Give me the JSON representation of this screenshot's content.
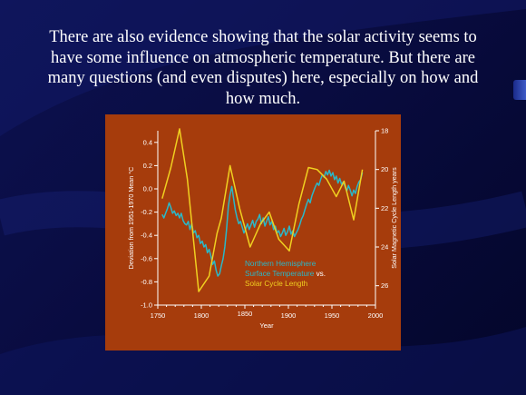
{
  "slide": {
    "caption": "There are also evidence showing that the solar activity seems to have some influence on atmospheric temperature. But there are many questions (and even disputes) here, especially on how and how much."
  },
  "colors": {
    "background": "#08104a",
    "panel": "#a63c0c",
    "temperature_line": "#2ab8c8",
    "solar_line": "#f0d020",
    "axis": "#ffffff"
  },
  "chart_data": {
    "type": "line",
    "xlabel": "Year",
    "ylabel_left": "Deviation from 1951-1970 Mean °C",
    "ylabel_right": "Solar Magnetic Cycle Length years",
    "xlim": [
      1750,
      2000
    ],
    "ylim_left": [
      -1.0,
      0.5
    ],
    "ylim_right": [
      27.0,
      18.0
    ],
    "right_axis_inverted": true,
    "x_ticks": [
      "1750",
      "1800",
      "1850",
      "1900",
      "1950",
      "2000"
    ],
    "y_ticks_left": [
      "0.4",
      "0.2",
      "0.0",
      "-0.2",
      "-0.4",
      "-0.6",
      "-0.8",
      "-1.0"
    ],
    "y_ticks_right": [
      "18",
      "20",
      "22",
      "24",
      "26"
    ],
    "legend_lines": [
      {
        "text": "Northern Hemisphere",
        "color": "#2ab8c8"
      },
      {
        "text": "Surface Temperature",
        "color": "#2ab8c8",
        "suffix": " vs.",
        "suffix_color": "#ffffff"
      },
      {
        "text": "Solar Cycle Length",
        "color": "#f0d020"
      }
    ],
    "legend_position": "lower-center",
    "series": [
      {
        "name": "Northern Hemisphere Surface Temperature",
        "color": "#2ab8c8",
        "axis": "left",
        "x": [
          1755,
          1757,
          1759,
          1761,
          1763,
          1765,
          1767,
          1769,
          1771,
          1773,
          1775,
          1777,
          1779,
          1781,
          1783,
          1785,
          1787,
          1789,
          1791,
          1793,
          1795,
          1797,
          1799,
          1801,
          1803,
          1805,
          1807,
          1809,
          1811,
          1813,
          1815,
          1817,
          1819,
          1821,
          1823,
          1825,
          1827,
          1829,
          1831,
          1833,
          1835,
          1837,
          1839,
          1841,
          1843,
          1845,
          1847,
          1849,
          1851,
          1853,
          1855,
          1857,
          1859,
          1861,
          1863,
          1865,
          1867,
          1869,
          1871,
          1873,
          1875,
          1877,
          1879,
          1881,
          1883,
          1885,
          1887,
          1889,
          1891,
          1893,
          1895,
          1897,
          1899,
          1901,
          1903,
          1905,
          1907,
          1909,
          1911,
          1913,
          1915,
          1917,
          1919,
          1921,
          1923,
          1925,
          1927,
          1929,
          1931,
          1933,
          1935,
          1937,
          1939,
          1941,
          1943,
          1945,
          1947,
          1949,
          1951,
          1953,
          1955,
          1957,
          1959,
          1961,
          1963,
          1965,
          1967,
          1969,
          1971,
          1973,
          1975,
          1977,
          1979,
          1981,
          1983,
          1985
        ],
        "y": [
          -0.22,
          -0.25,
          -0.21,
          -0.17,
          -0.12,
          -0.16,
          -0.21,
          -0.19,
          -0.23,
          -0.21,
          -0.25,
          -0.21,
          -0.27,
          -0.3,
          -0.31,
          -0.28,
          -0.35,
          -0.3,
          -0.38,
          -0.36,
          -0.42,
          -0.4,
          -0.47,
          -0.45,
          -0.5,
          -0.48,
          -0.55,
          -0.52,
          -0.58,
          -0.65,
          -0.62,
          -0.7,
          -0.75,
          -0.73,
          -0.66,
          -0.6,
          -0.5,
          -0.35,
          -0.15,
          -0.05,
          0.02,
          -0.08,
          -0.18,
          -0.25,
          -0.3,
          -0.28,
          -0.33,
          -0.38,
          -0.34,
          -0.3,
          -0.35,
          -0.31,
          -0.27,
          -0.33,
          -0.28,
          -0.26,
          -0.22,
          -0.3,
          -0.25,
          -0.32,
          -0.28,
          -0.24,
          -0.31,
          -0.28,
          -0.35,
          -0.32,
          -0.38,
          -0.36,
          -0.41,
          -0.38,
          -0.34,
          -0.4,
          -0.37,
          -0.32,
          -0.39,
          -0.36,
          -0.41,
          -0.38,
          -0.35,
          -0.31,
          -0.26,
          -0.23,
          -0.18,
          -0.13,
          -0.09,
          -0.12,
          -0.06,
          -0.02,
          0.02,
          0.05,
          0.03,
          0.08,
          0.12,
          0.1,
          0.15,
          0.12,
          0.16,
          0.11,
          0.14,
          0.08,
          0.11,
          0.05,
          0.09,
          0.04,
          0.06,
          0.02,
          -0.02,
          0.03,
          -0.01,
          -0.06,
          -0.01,
          -0.04,
          0.02,
          0.06,
          0.08,
          0.14
        ]
      },
      {
        "name": "Solar Cycle Length",
        "color": "#f0d020",
        "axis": "right",
        "x": [
          1755,
          1765,
          1775,
          1784,
          1797,
          1809,
          1818,
          1823,
          1833,
          1844,
          1856,
          1868,
          1878,
          1889,
          1901,
          1912,
          1923,
          1933,
          1944,
          1955,
          1964,
          1975,
          1985
        ],
        "y": [
          21.5,
          19.9,
          17.9,
          20.5,
          26.3,
          25.5,
          23.3,
          22.5,
          19.8,
          22.0,
          24.0,
          22.8,
          22.2,
          23.6,
          24.2,
          21.8,
          19.9,
          20.0,
          20.5,
          21.4,
          20.6,
          22.6,
          20.0
        ]
      }
    ]
  }
}
